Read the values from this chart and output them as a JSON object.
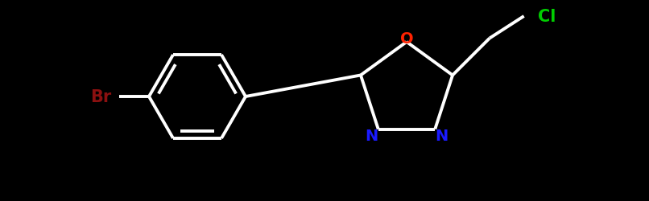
{
  "background_color": "#000000",
  "bond_color": "#ffffff",
  "bond_lw": 2.8,
  "atom_colors": {
    "Br": "#8b1010",
    "N": "#1a1aff",
    "O": "#ff2200",
    "Cl": "#00cc00"
  },
  "figsize": [
    8.06,
    2.51
  ],
  "dpi": 100,
  "xlim": [
    0,
    8.06
  ],
  "ylim": [
    0,
    2.51
  ]
}
